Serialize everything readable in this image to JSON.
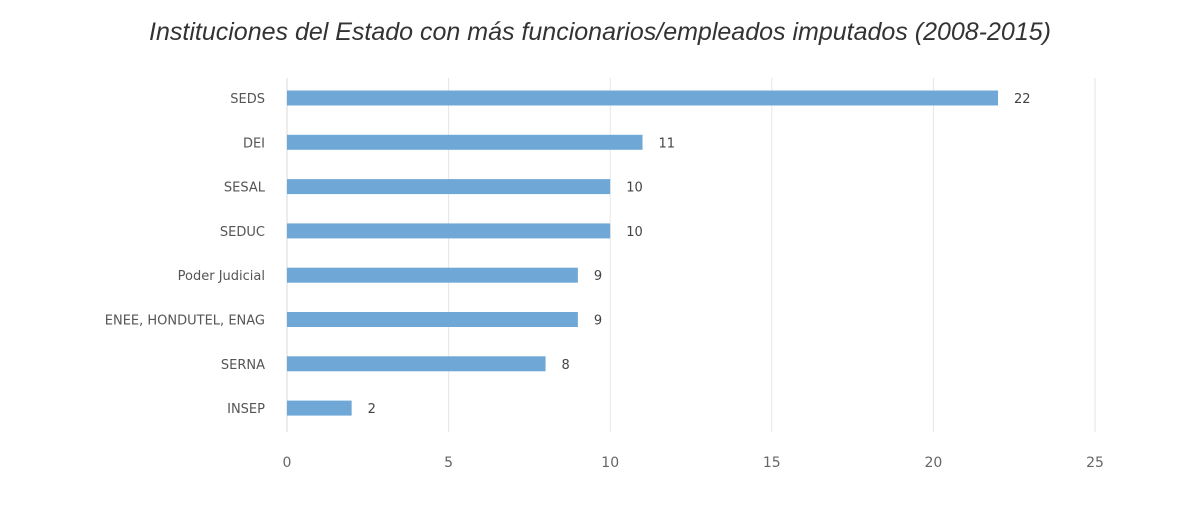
{
  "chart_data": {
    "type": "bar",
    "orientation": "horizontal",
    "title": "Instituciones del Estado con más funcionarios/empleados imputados (2008-2015)",
    "categories": [
      "SEDS",
      "DEI",
      "SESAL",
      "SEDUC",
      "Poder Judicial",
      "ENEE, HONDUTEL, ENAG",
      "SERNA",
      "INSEP"
    ],
    "values": [
      22,
      11,
      10,
      10,
      9,
      9,
      8,
      2
    ],
    "xlim": [
      0,
      25
    ],
    "xticks": [
      0,
      5,
      10,
      15,
      20,
      25
    ],
    "grid": true,
    "bar_color": "#6fa8d6",
    "data_labels": true
  }
}
